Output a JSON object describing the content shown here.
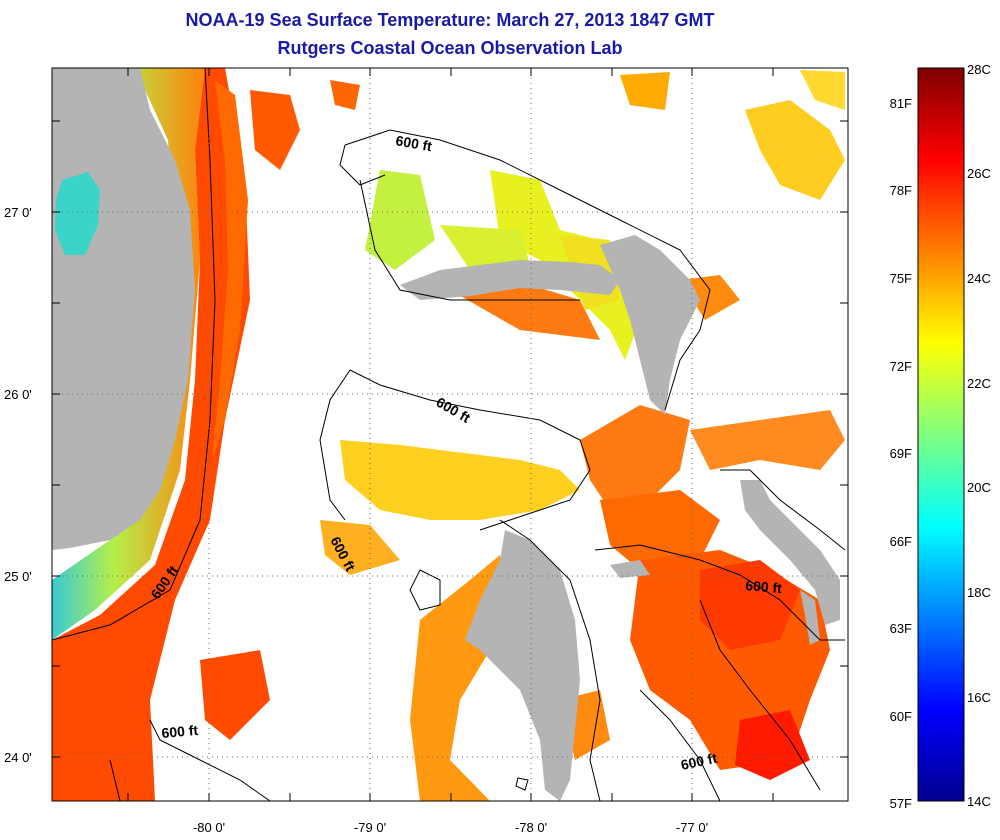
{
  "header": {
    "title": "NOAA-19 Sea Surface Temperature:  March 27, 2013 1847 GMT",
    "subtitle": "Rutgers Coastal Ocean Observation Lab"
  },
  "map": {
    "lat_labels": [
      "27 0'",
      "26 0'",
      "25 0'",
      "24 0'"
    ],
    "lon_labels": [
      "-80 0'",
      "-79 0'",
      "-78 0'",
      "-77 0'"
    ],
    "contour_labels": [
      "600 ft",
      "600 ft",
      "600 ft",
      "600 ft",
      "600 ft",
      "600 ft"
    ],
    "colors": {
      "land": "#b4b4b4",
      "cloud": "#ffffff",
      "coastline": "#000000"
    }
  },
  "colorbar": {
    "fahrenheit_labels": [
      "81F",
      "78F",
      "75F",
      "72F",
      "69F",
      "66F",
      "63F",
      "60F",
      "57F"
    ],
    "celsius_labels": [
      "28C",
      "26C",
      "24C",
      "22C",
      "20C",
      "18C",
      "16C",
      "14C"
    ],
    "colormap": "jet"
  }
}
